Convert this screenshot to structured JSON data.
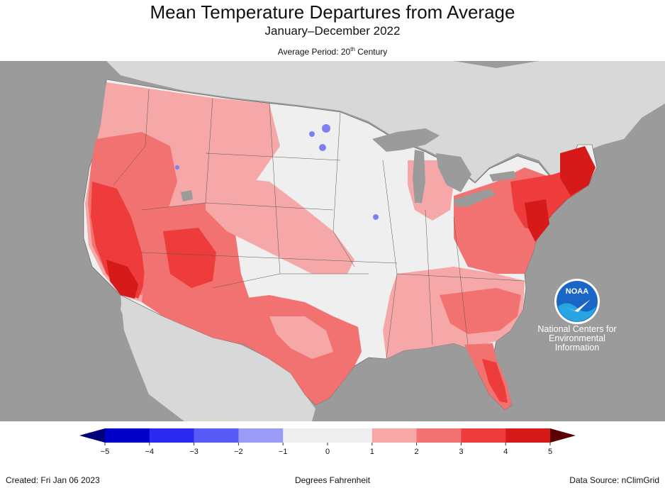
{
  "header": {
    "title": "Mean Temperature Departures from Average",
    "subtitle": "January–December 2022",
    "period_prefix": "Average Period: 20",
    "period_sup": "th",
    "period_suffix": " Century"
  },
  "colors": {
    "ocean": "#9b9b9b",
    "land_outside": "#d8d8d8",
    "near_normal": "#efefef",
    "warm_1": "#f6a7a7",
    "warm_2": "#f27272",
    "warm_3": "#ee3b3b",
    "warm_4": "#d61a1a",
    "cool_1": "#7f7ff2",
    "lakes": "#9b9b9b"
  },
  "legend": {
    "ticks": [
      "−5",
      "−4",
      "−3",
      "−2",
      "−1",
      "0",
      "1",
      "2",
      "3",
      "4",
      "5"
    ],
    "bins": [
      {
        "range": "-5 to -4",
        "color": "#0000c8"
      },
      {
        "range": "-4 to -3",
        "color": "#2a2af0"
      },
      {
        "range": "-3 to -2",
        "color": "#5a5af5"
      },
      {
        "range": "-2 to -1",
        "color": "#9a9af7"
      },
      {
        "range": "-1 to 0",
        "color": "#efefef"
      },
      {
        "range": "0 to 1",
        "color": "#efefef"
      },
      {
        "range": "1 to 2",
        "color": "#f6a7a7"
      },
      {
        "range": "2 to 3",
        "color": "#f27272"
      },
      {
        "range": "3 to 4",
        "color": "#ee3b3b"
      },
      {
        "range": "4 to 5",
        "color": "#d61a1a"
      }
    ],
    "end_low_color": "#00007a",
    "end_high_color": "#5a0000"
  },
  "logo": {
    "text": "NOAA",
    "org_lines": [
      "National Centers for",
      "Environmental",
      "Information"
    ]
  },
  "footer": {
    "created": "Created: Fri Jan 06 2023",
    "units": "Degrees Fahrenheit",
    "source": "Data Source: nClimGrid"
  }
}
